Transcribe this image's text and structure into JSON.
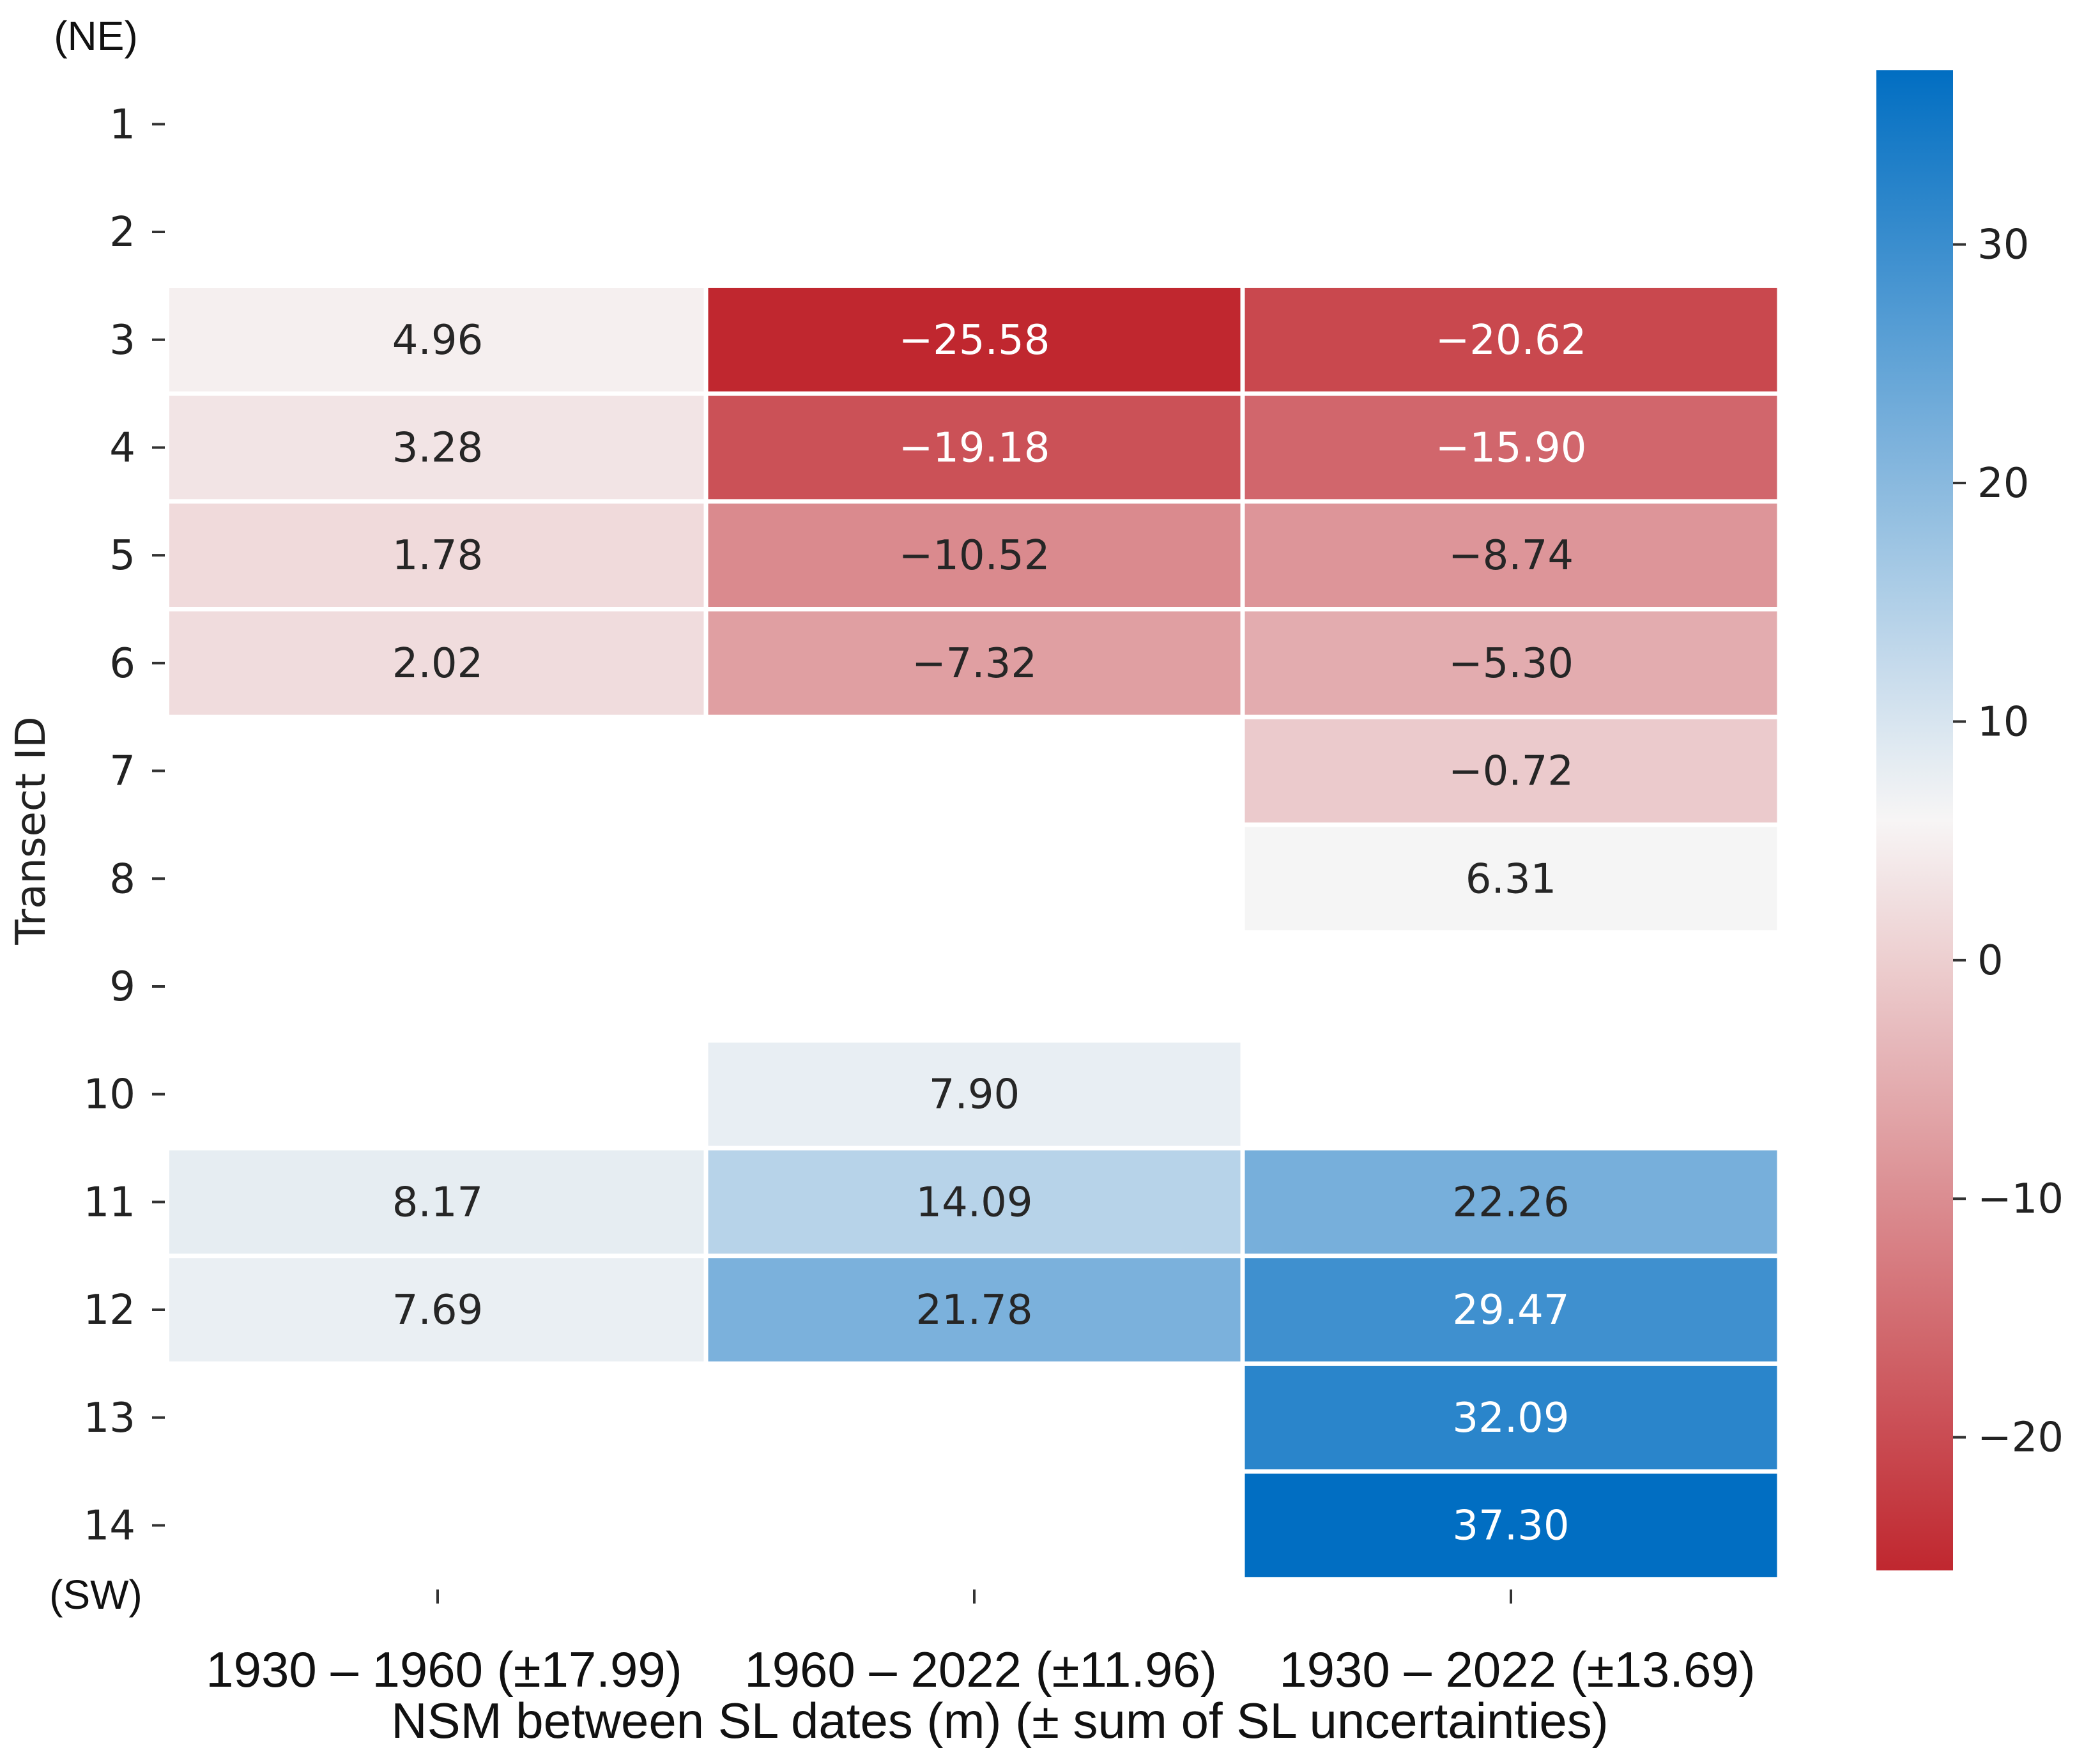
{
  "chart_data": {
    "type": "heatmap",
    "title": "",
    "xlabel": "NSM between SL dates (m) (± sum of SL uncertainties)",
    "ylabel": "Transect ID",
    "top_annotation": "(NE)",
    "bottom_annotation": "(SW)",
    "columns": [
      "1930 – 1960 (±17.99)",
      "1960 – 2022 (±11.96)",
      "1930 – 2022 (±13.69)"
    ],
    "rows": [
      "1",
      "2",
      "3",
      "4",
      "5",
      "6",
      "7",
      "8",
      "9",
      "10",
      "11",
      "12",
      "13",
      "14"
    ],
    "values": [
      [
        null,
        null,
        null
      ],
      [
        null,
        null,
        null
      ],
      [
        4.96,
        -25.58,
        -20.62
      ],
      [
        3.28,
        -19.18,
        -15.9
      ],
      [
        1.78,
        -10.52,
        -8.74
      ],
      [
        2.02,
        -7.32,
        -5.3
      ],
      [
        null,
        null,
        -0.72
      ],
      [
        null,
        null,
        6.31
      ],
      [
        null,
        null,
        null
      ],
      [
        null,
        7.9,
        null
      ],
      [
        8.17,
        14.09,
        22.26
      ],
      [
        7.69,
        21.78,
        29.47
      ],
      [
        null,
        null,
        32.09
      ],
      [
        null,
        null,
        37.3
      ]
    ],
    "labels": [
      [
        "",
        "",
        ""
      ],
      [
        "",
        "",
        ""
      ],
      [
        "4.96",
        "−25.58",
        "−20.62"
      ],
      [
        "3.28",
        "−19.18",
        "−15.90"
      ],
      [
        "1.78",
        "−10.52",
        "−8.74"
      ],
      [
        "2.02",
        "−7.32",
        "−5.30"
      ],
      [
        "",
        "",
        "−0.72"
      ],
      [
        "",
        "",
        "6.31"
      ],
      [
        "",
        "",
        ""
      ],
      [
        "",
        "7.90",
        ""
      ],
      [
        "8.17",
        "14.09",
        "22.26"
      ],
      [
        "7.69",
        "21.78",
        "29.47"
      ],
      [
        "",
        "",
        "32.09"
      ],
      [
        "",
        "",
        "37.30"
      ]
    ],
    "colorbar": {
      "vmin": -25.58,
      "vmax": 37.3,
      "center": 6.0,
      "ticks": [
        30,
        20,
        10,
        0,
        -10,
        -20
      ],
      "tick_labels": [
        "30",
        "20",
        "10",
        "0",
        "−10",
        "−20"
      ],
      "colormap": "red-white-blue",
      "colors": {
        "low": "#c0272f",
        "mid": "#f7f6f6",
        "high": "#016ec2"
      }
    }
  }
}
